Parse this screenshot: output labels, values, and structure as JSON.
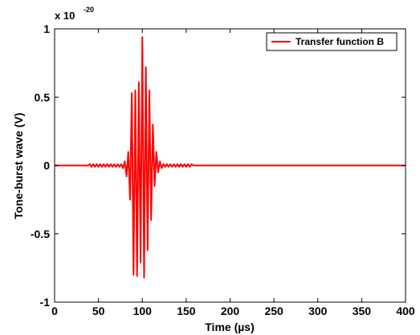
{
  "chart_data": {
    "type": "line",
    "title": "",
    "xlabel": "Time (µs)",
    "ylabel": "Tone-burst wave (V)",
    "y_scale_text": "x 10",
    "y_scale_exponent": "-20",
    "xlim": [
      0,
      400
    ],
    "ylim": [
      -1,
      1
    ],
    "x_ticks": [
      0,
      50,
      100,
      150,
      200,
      250,
      300,
      350,
      400
    ],
    "x_tick_labels": [
      "0",
      "50",
      "100",
      "150",
      "200",
      "250",
      "300",
      "350",
      "400"
    ],
    "y_ticks": [
      -1,
      -0.5,
      0,
      0.5,
      1
    ],
    "y_tick_labels": [
      "-1",
      "-0.5",
      "0",
      "0.5",
      "1"
    ],
    "grid": false,
    "legend_position": "top-right",
    "series": [
      {
        "name": "Transfer function B",
        "color": "#ff0000",
        "x": [
          0,
          38,
          40,
          42,
          44,
          46,
          48,
          50,
          52,
          54,
          56,
          58,
          60,
          62,
          64,
          66,
          68,
          70,
          72,
          74,
          76,
          78,
          80,
          82,
          84,
          86,
          88,
          90,
          92,
          94,
          96,
          98,
          100,
          102,
          104,
          106,
          108,
          110,
          112,
          114,
          116,
          118,
          120,
          122,
          124,
          126,
          128,
          130,
          132,
          134,
          136,
          138,
          140,
          142,
          144,
          146,
          148,
          150,
          152,
          154,
          156,
          158,
          160,
          162,
          400
        ],
        "y": [
          0,
          0,
          0.01,
          -0.01,
          0.01,
          -0.01,
          0.01,
          -0.01,
          0.01,
          -0.01,
          0.01,
          -0.01,
          0.01,
          -0.01,
          0.01,
          -0.01,
          0.01,
          -0.01,
          0.01,
          -0.01,
          0.01,
          -0.02,
          0.03,
          -0.08,
          0.1,
          -0.25,
          0.53,
          -0.8,
          0.55,
          -0.81,
          0.61,
          -0.71,
          0.94,
          -0.82,
          0.72,
          -0.62,
          0.55,
          -0.4,
          0.3,
          -0.15,
          0.1,
          -0.05,
          0.03,
          -0.02,
          0.01,
          -0.01,
          0.01,
          -0.01,
          0.01,
          -0.01,
          0.01,
          -0.01,
          0.01,
          -0.01,
          0.01,
          -0.01,
          0.01,
          -0.01,
          0.01,
          -0.01,
          0.01,
          0,
          0,
          0,
          0
        ]
      }
    ]
  }
}
